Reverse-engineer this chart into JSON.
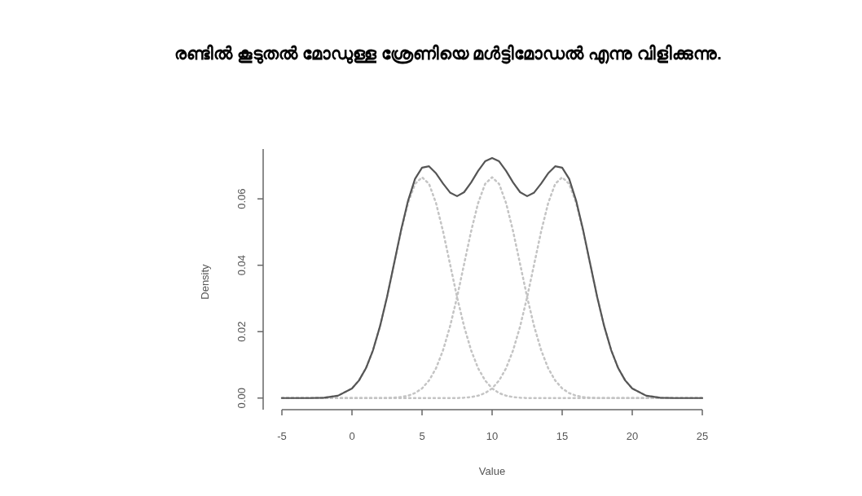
{
  "chart_data": {
    "type": "line",
    "title": "രണ്ടിൽ കൂടുതൽ മോഡുള്ള ശ്രേണിയെ മൾട്ടിമോഡൽ എന്നു വിളിക്കുന്നു.",
    "xlabel": "Value",
    "ylabel": "Density",
    "xlim": [
      -5,
      25
    ],
    "ylim": [
      -0.0035,
      0.075
    ],
    "xticks": [
      -5,
      0,
      5,
      10,
      15,
      20,
      25
    ],
    "yticks": [
      {
        "value": 0,
        "label": "0.00"
      },
      {
        "value": 0.02,
        "label": "0.02"
      },
      {
        "value": 0.04,
        "label": "0.04"
      },
      {
        "value": 0.06,
        "label": "0.06"
      }
    ],
    "x": [
      -5,
      -4,
      -3,
      -2,
      -1,
      0,
      0.5,
      1,
      1.5,
      2,
      2.5,
      3,
      3.5,
      4,
      4.5,
      5,
      5.5,
      6,
      6.5,
      7,
      7.5,
      8,
      8.5,
      9,
      9.5,
      10,
      10.5,
      11,
      11.5,
      12,
      12.5,
      13,
      13.5,
      14,
      14.5,
      15,
      15.5,
      16,
      16.5,
      17,
      17.5,
      18,
      18.5,
      19,
      19.5,
      20,
      21,
      22,
      23,
      24,
      25
    ],
    "series": [
      {
        "color": "#c4c4c4",
        "line_style": "dotted",
        "values": [
          0,
          0,
          0,
          0.0001,
          0.0007,
          0.0029,
          0.0053,
          0.009,
          0.0144,
          0.0216,
          0.0304,
          0.0403,
          0.0502,
          0.0587,
          0.0645,
          0.0665,
          0.0645,
          0.0587,
          0.0502,
          0.0403,
          0.0304,
          0.0216,
          0.0144,
          0.009,
          0.0053,
          0.0029,
          0.0015,
          0.0007,
          0.0003,
          0.0001,
          0,
          0,
          0,
          0,
          0,
          0,
          0,
          0,
          0,
          0,
          0,
          0,
          0,
          0,
          0,
          0,
          0,
          0,
          0,
          0,
          0
        ]
      },
      {
        "color": "#c4c4c4",
        "line_style": "dotted",
        "values": [
          0,
          0,
          0,
          0,
          0,
          0,
          0,
          0,
          0,
          0,
          0,
          0.0001,
          0.0003,
          0.0007,
          0.0015,
          0.0029,
          0.0053,
          0.009,
          0.0144,
          0.0216,
          0.0304,
          0.0403,
          0.0502,
          0.0587,
          0.0645,
          0.0665,
          0.0645,
          0.0587,
          0.0502,
          0.0403,
          0.0304,
          0.0216,
          0.0144,
          0.009,
          0.0053,
          0.0029,
          0.0015,
          0.0007,
          0.0003,
          0.0001,
          0,
          0,
          0,
          0,
          0,
          0,
          0,
          0,
          0,
          0,
          0
        ]
      },
      {
        "color": "#c4c4c4",
        "line_style": "dotted",
        "values": [
          0,
          0,
          0,
          0,
          0,
          0,
          0,
          0,
          0,
          0,
          0,
          0,
          0,
          0,
          0,
          0,
          0,
          0,
          0,
          0,
          0,
          0.0001,
          0.0003,
          0.0007,
          0.0015,
          0.0029,
          0.0053,
          0.009,
          0.0144,
          0.0216,
          0.0304,
          0.0403,
          0.0502,
          0.0587,
          0.0645,
          0.0665,
          0.0645,
          0.0587,
          0.0502,
          0.0403,
          0.0304,
          0.0216,
          0.0144,
          0.009,
          0.0053,
          0.0029,
          0.0007,
          0.0001,
          0,
          0,
          0
        ]
      },
      {
        "color": "#555555",
        "line_style": "solid",
        "values": [
          0,
          0,
          0,
          0.0001,
          0.0007,
          0.0029,
          0.0053,
          0.009,
          0.0144,
          0.0216,
          0.0304,
          0.0404,
          0.0505,
          0.0594,
          0.066,
          0.0694,
          0.0698,
          0.0677,
          0.0646,
          0.0619,
          0.0608,
          0.062,
          0.0649,
          0.0684,
          0.0713,
          0.0723,
          0.0713,
          0.0684,
          0.0649,
          0.062,
          0.0608,
          0.0619,
          0.0646,
          0.0677,
          0.0698,
          0.0694,
          0.066,
          0.0594,
          0.0505,
          0.0404,
          0.0304,
          0.0216,
          0.0144,
          0.009,
          0.0053,
          0.0029,
          0.0007,
          0.0001,
          0,
          0,
          0
        ]
      }
    ]
  }
}
